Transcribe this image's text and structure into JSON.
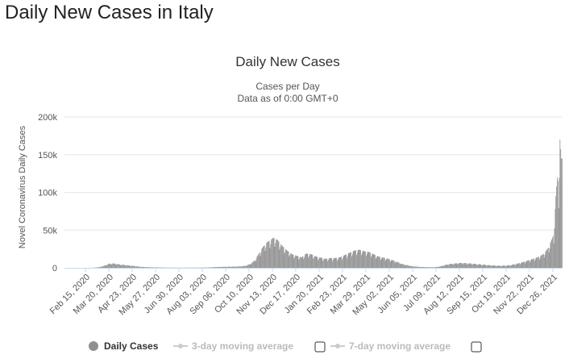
{
  "page": {
    "title": "Daily New Cases in Italy"
  },
  "colors": {
    "bars": "#909090",
    "grid": "#e6e6e6",
    "axis": "#ccd6eb",
    "inactive": "#cccccc"
  },
  "legend": {
    "items": [
      {
        "label": "Daily Cases",
        "active": true
      },
      {
        "label": "3-day moving average",
        "active": false
      },
      {
        "label": "7-day moving average",
        "active": false
      }
    ]
  },
  "chart_data": {
    "type": "bar",
    "title": "Daily New Cases",
    "subtitle": "Cases per Day",
    "subtitle2": "Data as of 0:00 GMT+0",
    "ylabel": "Novel Coronavirus Daily Cases",
    "xlabel": "",
    "ylim": [
      0,
      200000
    ],
    "yticks": [
      0,
      50000,
      100000,
      150000,
      200000
    ],
    "ytick_labels": [
      "0",
      "50k",
      "100k",
      "150k",
      "200k"
    ],
    "grid": true,
    "legend_position": "bottom",
    "x_range": [
      "2020-02-15",
      "2022-01-08"
    ],
    "xtick_labels": [
      "Feb 15, 2020",
      "Mar 20, 2020",
      "Apr 23, 2020",
      "May 27, 2020",
      "Jun 30, 2020",
      "Aug 03, 2020",
      "Sep 06, 2020",
      "Oct 10, 2020",
      "Nov 13, 2020",
      "Dec 17, 2020",
      "Jan 20, 2021",
      "Feb 23, 2021",
      "Mar 29, 2021",
      "May 02, 2021",
      "Jun 05, 2021",
      "Jul 09, 2021",
      "Aug 12, 2021",
      "Sep 15, 2021",
      "Oct 19, 2021",
      "Nov 22, 2021",
      "Dec 26, 2021"
    ],
    "series": [
      {
        "name": "Daily Cases",
        "points": [
          [
            "2020-02-15",
            0
          ],
          [
            "2020-02-25",
            100
          ],
          [
            "2020-03-05",
            800
          ],
          [
            "2020-03-12",
            2500
          ],
          [
            "2020-03-20",
            5500
          ],
          [
            "2020-03-27",
            5800
          ],
          [
            "2020-04-05",
            4500
          ],
          [
            "2020-04-15",
            3500
          ],
          [
            "2020-04-25",
            2500
          ],
          [
            "2020-05-05",
            1300
          ],
          [
            "2020-05-20",
            700
          ],
          [
            "2020-06-10",
            300
          ],
          [
            "2020-07-05",
            200
          ],
          [
            "2020-07-25",
            300
          ],
          [
            "2020-08-10",
            450
          ],
          [
            "2020-08-25",
            1200
          ],
          [
            "2020-09-10",
            1500
          ],
          [
            "2020-09-25",
            1800
          ],
          [
            "2020-10-05",
            2800
          ],
          [
            "2020-10-12",
            5500
          ],
          [
            "2020-10-18",
            10000
          ],
          [
            "2020-10-24",
            19000
          ],
          [
            "2020-10-30",
            28000
          ],
          [
            "2020-11-05",
            34000
          ],
          [
            "2020-11-10",
            37000
          ],
          [
            "2020-11-14",
            40000
          ],
          [
            "2020-11-20",
            37000
          ],
          [
            "2020-11-27",
            29000
          ],
          [
            "2020-12-04",
            23000
          ],
          [
            "2020-12-11",
            18000
          ],
          [
            "2020-12-18",
            16000
          ],
          [
            "2020-12-25",
            14000
          ],
          [
            "2021-01-01",
            19000
          ],
          [
            "2021-01-08",
            18000
          ],
          [
            "2021-01-15",
            15000
          ],
          [
            "2021-01-22",
            13500
          ],
          [
            "2021-01-29",
            12000
          ],
          [
            "2021-02-05",
            13000
          ],
          [
            "2021-02-12",
            13000
          ],
          [
            "2021-02-19",
            14000
          ],
          [
            "2021-02-26",
            17000
          ],
          [
            "2021-03-05",
            20000
          ],
          [
            "2021-03-12",
            23000
          ],
          [
            "2021-03-19",
            24000
          ],
          [
            "2021-03-26",
            22000
          ],
          [
            "2021-04-02",
            21000
          ],
          [
            "2021-04-09",
            18000
          ],
          [
            "2021-04-16",
            15000
          ],
          [
            "2021-04-23",
            13500
          ],
          [
            "2021-04-30",
            12000
          ],
          [
            "2021-05-07",
            10000
          ],
          [
            "2021-05-14",
            7500
          ],
          [
            "2021-05-21",
            5000
          ],
          [
            "2021-05-28",
            3500
          ],
          [
            "2021-06-05",
            2000
          ],
          [
            "2021-06-15",
            1300
          ],
          [
            "2021-06-25",
            900
          ],
          [
            "2021-07-05",
            800
          ],
          [
            "2021-07-12",
            1400
          ],
          [
            "2021-07-19",
            3000
          ],
          [
            "2021-07-26",
            4800
          ],
          [
            "2021-08-02",
            5500
          ],
          [
            "2021-08-09",
            6200
          ],
          [
            "2021-08-16",
            6500
          ],
          [
            "2021-08-23",
            6000
          ],
          [
            "2021-08-30",
            5700
          ],
          [
            "2021-09-06",
            5000
          ],
          [
            "2021-09-13",
            4500
          ],
          [
            "2021-09-20",
            3800
          ],
          [
            "2021-09-27",
            3300
          ],
          [
            "2021-10-04",
            3000
          ],
          [
            "2021-10-11",
            2800
          ],
          [
            "2021-10-18",
            3000
          ],
          [
            "2021-10-25",
            3600
          ],
          [
            "2021-11-01",
            5000
          ],
          [
            "2021-11-08",
            6500
          ],
          [
            "2021-11-15",
            8500
          ],
          [
            "2021-11-22",
            10500
          ],
          [
            "2021-11-29",
            12500
          ],
          [
            "2021-12-06",
            15000
          ],
          [
            "2021-12-13",
            19000
          ],
          [
            "2021-12-20",
            28000
          ],
          [
            "2021-12-27",
            45000
          ],
          [
            "2021-12-30",
            95000
          ],
          [
            "2022-01-01",
            120000
          ],
          [
            "2022-01-03",
            110000
          ],
          [
            "2022-01-05",
            170000
          ],
          [
            "2022-01-07",
            145000
          ],
          [
            "2022-01-08",
            145000
          ]
        ]
      }
    ]
  }
}
